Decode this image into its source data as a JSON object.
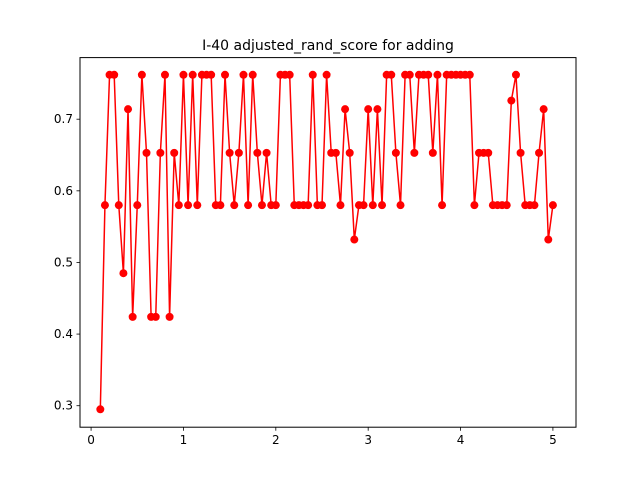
{
  "chart_data": {
    "type": "line",
    "title": "I-40 adjusted_rand_score for adding",
    "xlabel": "",
    "ylabel": "",
    "xlim": [
      -0.12,
      5.25
    ],
    "ylim": [
      0.27,
      0.786
    ],
    "xticks": [
      0,
      1,
      2,
      3,
      4,
      5
    ],
    "yticks": [
      0.3,
      0.4,
      0.5,
      0.6,
      0.7
    ],
    "grid": false,
    "legend": "none",
    "colors": {
      "series": "#ff0000",
      "axes": "#000000",
      "background": "#ffffff"
    },
    "series": [
      {
        "x": [
          0.1,
          0.15,
          0.2,
          0.25,
          0.3,
          0.35,
          0.4,
          0.45,
          0.5,
          0.55,
          0.6,
          0.65,
          0.7,
          0.75,
          0.8,
          0.85,
          0.9,
          0.95,
          1.0,
          1.05,
          1.1,
          1.15,
          1.2,
          1.25,
          1.3,
          1.35,
          1.4,
          1.45,
          1.5,
          1.55,
          1.6,
          1.65,
          1.7,
          1.75,
          1.8,
          1.85,
          1.9,
          1.95,
          2.0,
          2.05,
          2.1,
          2.15,
          2.2,
          2.25,
          2.3,
          2.35,
          2.4,
          2.45,
          2.5,
          2.55,
          2.6,
          2.65,
          2.7,
          2.75,
          2.8,
          2.85,
          2.9,
          2.95,
          3.0,
          3.05,
          3.1,
          3.15,
          3.2,
          3.25,
          3.3,
          3.35,
          3.4,
          3.45,
          3.5,
          3.55,
          3.6,
          3.65,
          3.7,
          3.75,
          3.8,
          3.85,
          3.9,
          3.95,
          4.0,
          4.05,
          4.1,
          4.15,
          4.2,
          4.25,
          4.3,
          4.35,
          4.4,
          4.45,
          4.5,
          4.55,
          4.6,
          4.65,
          4.7,
          4.75,
          4.8,
          4.85,
          4.9,
          4.95,
          5.0
        ],
        "values": [
          0.295,
          0.58,
          0.762,
          0.762,
          0.58,
          0.485,
          0.714,
          0.424,
          0.58,
          0.762,
          0.653,
          0.424,
          0.424,
          0.653,
          0.762,
          0.424,
          0.653,
          0.58,
          0.762,
          0.58,
          0.762,
          0.58,
          0.762,
          0.762,
          0.762,
          0.58,
          0.58,
          0.762,
          0.653,
          0.58,
          0.653,
          0.762,
          0.58,
          0.762,
          0.653,
          0.58,
          0.653,
          0.58,
          0.58,
          0.762,
          0.762,
          0.762,
          0.58,
          0.58,
          0.58,
          0.58,
          0.762,
          0.58,
          0.58,
          0.762,
          0.653,
          0.653,
          0.58,
          0.714,
          0.653,
          0.532,
          0.58,
          0.58,
          0.714,
          0.58,
          0.714,
          0.58,
          0.762,
          0.762,
          0.653,
          0.58,
          0.762,
          0.762,
          0.653,
          0.762,
          0.762,
          0.762,
          0.653,
          0.762,
          0.58,
          0.762,
          0.762,
          0.762,
          0.762,
          0.762,
          0.762,
          0.58,
          0.653,
          0.653,
          0.653,
          0.58,
          0.58,
          0.58,
          0.58,
          0.726,
          0.762,
          0.653,
          0.58,
          0.58,
          0.58,
          0.653,
          0.714,
          0.532,
          0.58
        ]
      }
    ]
  }
}
